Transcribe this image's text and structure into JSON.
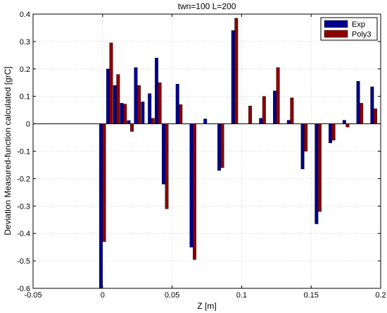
{
  "chart_data": {
    "type": "bar",
    "title": "twn=100 L=200",
    "xlabel": "Z [m]",
    "ylabel": "Deviation Measured-function calculated [grC]",
    "xlim": [
      -0.05,
      0.2
    ],
    "ylim": [
      -0.6,
      0.4
    ],
    "xticks": [
      "-0.05",
      "0",
      "0.05",
      "0.1",
      "0.15",
      "0.2"
    ],
    "yticks": [
      "-0.6",
      "-0.5",
      "-0.4",
      "-0.3",
      "-0.2",
      "-0.1",
      "0",
      "0.1",
      "0.2",
      "0.3",
      "0.4"
    ],
    "grid": true,
    "legend_position": "top-right",
    "x": [
      0,
      0.005,
      0.01,
      0.015,
      0.02,
      0.025,
      0.03,
      0.035,
      0.04,
      0.045,
      0.055,
      0.065,
      0.075,
      0.085,
      0.095,
      0.105,
      0.115,
      0.125,
      0.135,
      0.145,
      0.155,
      0.165,
      0.175,
      0.185,
      0.195
    ],
    "series": [
      {
        "name": "Exp",
        "color": "#00008f",
        "values": [
          -0.6,
          0.2,
          0.14,
          0.075,
          0.012,
          0.205,
          0.08,
          0.11,
          0.24,
          -0.22,
          0.145,
          -0.45,
          0.018,
          -0.17,
          0.34,
          0.0,
          0.02,
          0.12,
          0.013,
          -0.165,
          -0.365,
          -0.07,
          0.013,
          0.155,
          0.135
        ]
      },
      {
        "name": "Poly3",
        "color": "#8b0000",
        "values": [
          -0.43,
          0.295,
          0.18,
          0.072,
          -0.028,
          0.14,
          0.0,
          0.02,
          0.15,
          -0.31,
          0.07,
          -0.495,
          0.0,
          -0.16,
          0.385,
          0.065,
          0.1,
          0.205,
          0.095,
          -0.1,
          -0.32,
          -0.06,
          -0.012,
          0.075,
          0.055
        ]
      }
    ]
  }
}
